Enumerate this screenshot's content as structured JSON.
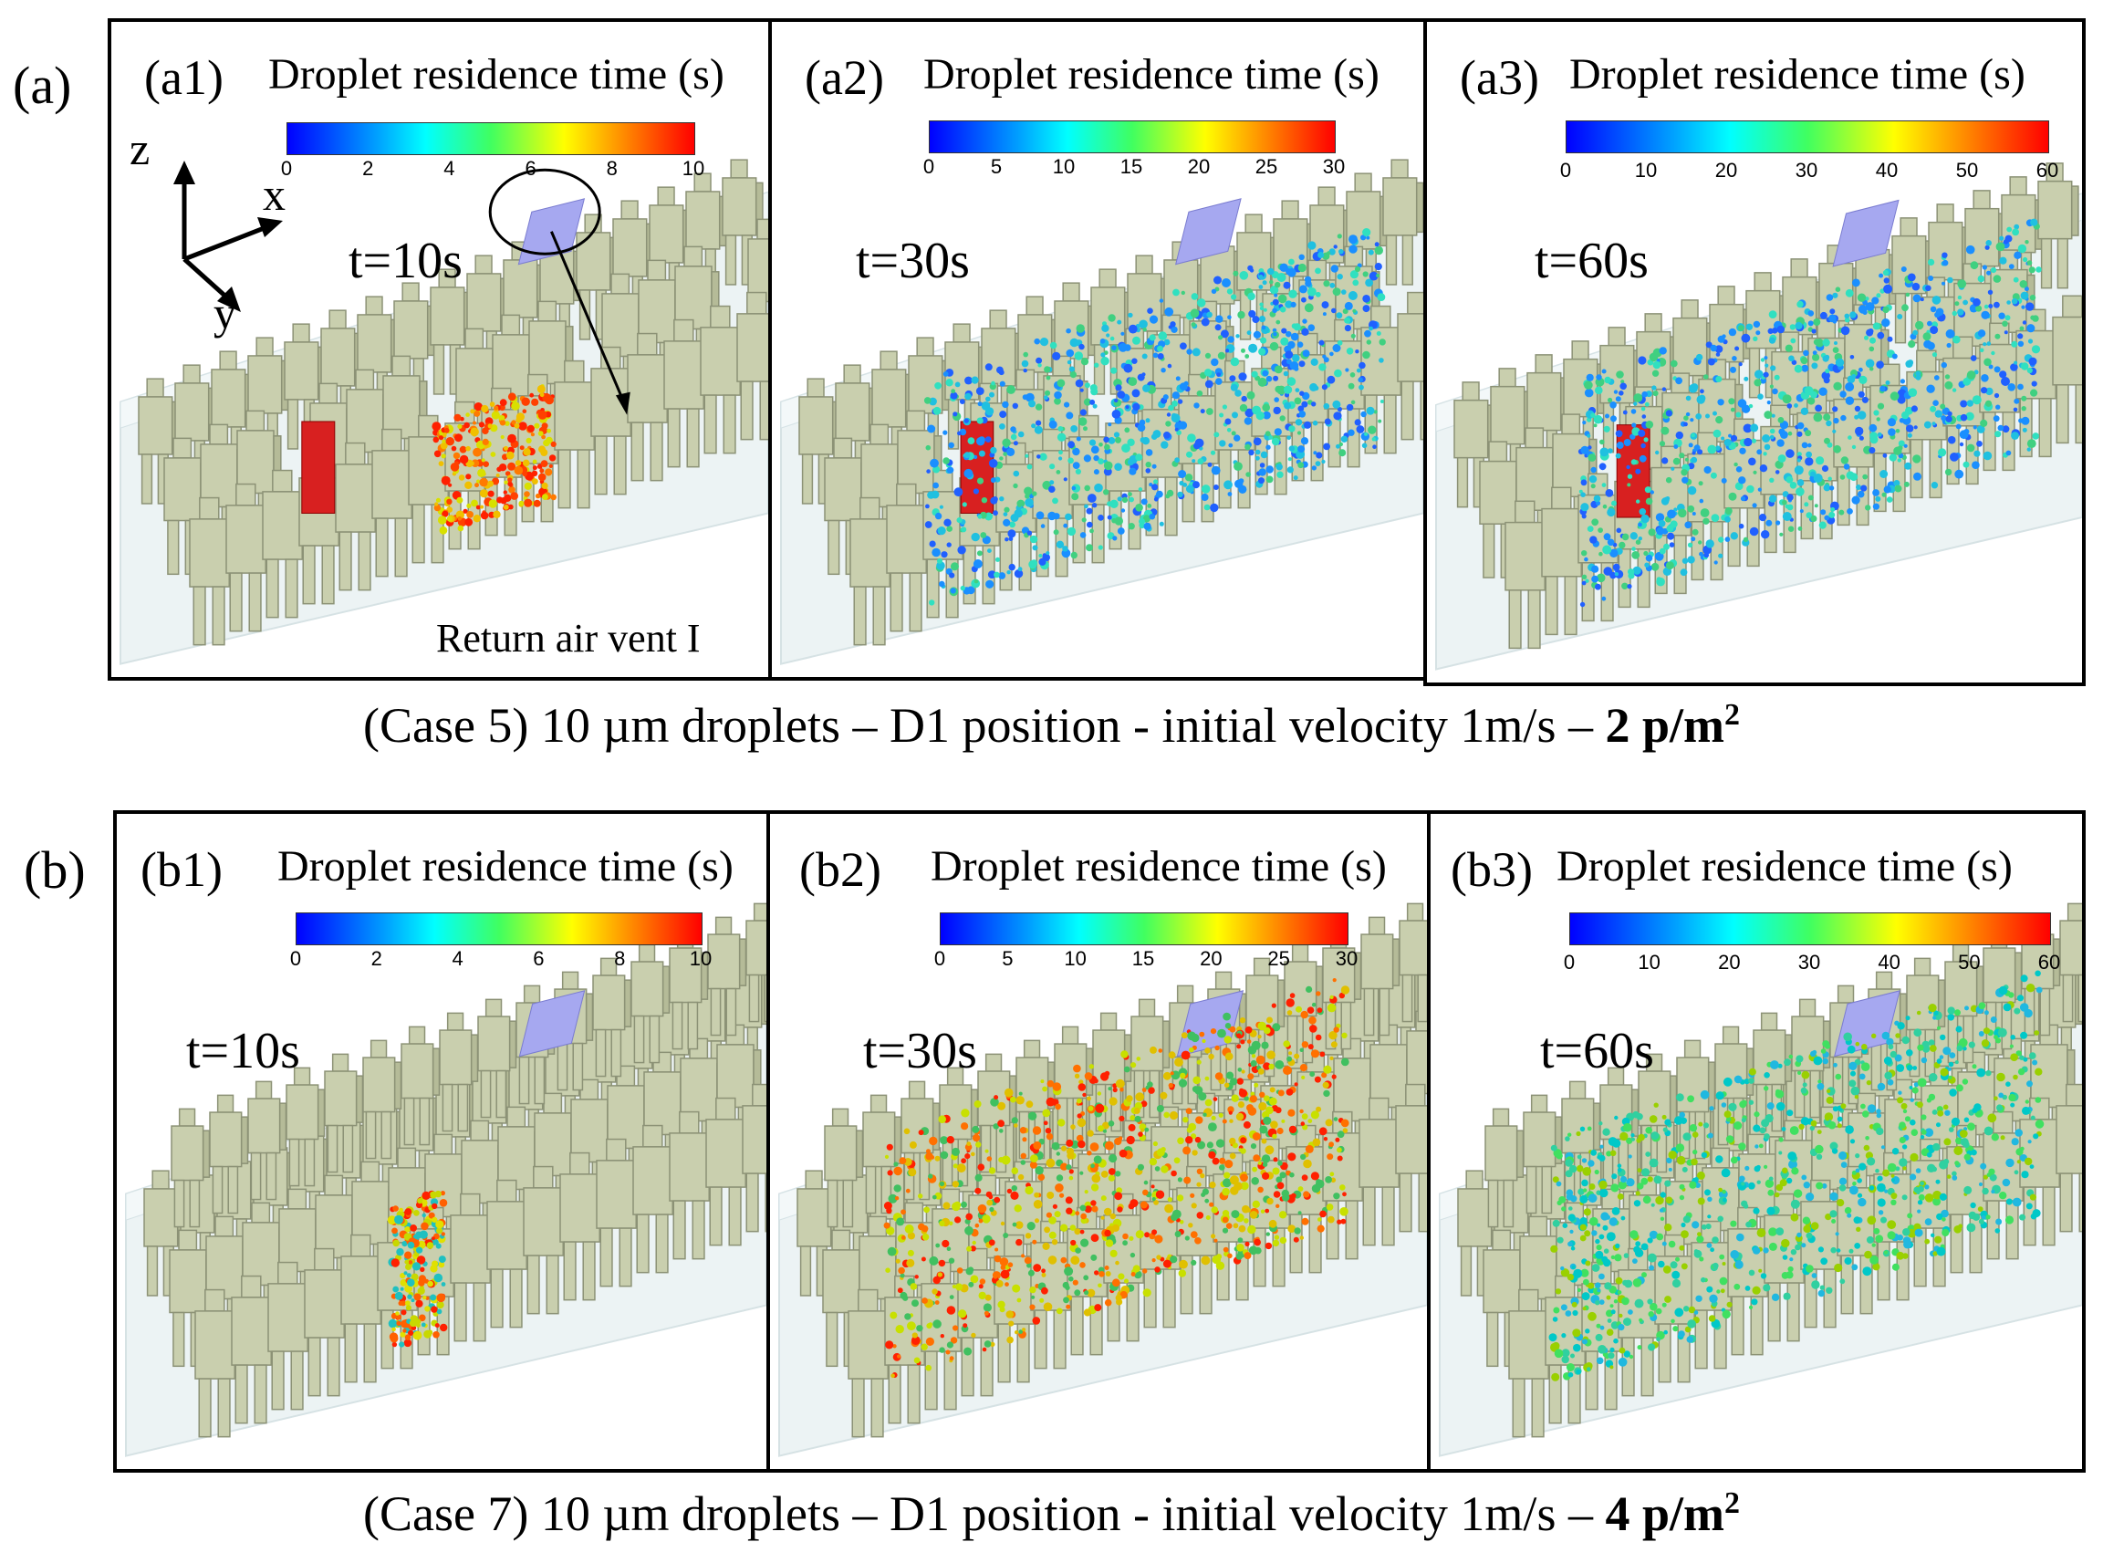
{
  "figure": {
    "row_a": {
      "label": "(a)",
      "caption_prefix": "(Case 5) 10 µm droplets – D1 position - initial velocity 1m/s – ",
      "caption_bold": "2 p/m",
      "caption_sup": "2",
      "panels": [
        {
          "id": "(a1)",
          "colorbar_title": "Droplet residence time  (s)",
          "ticks": [
            "0",
            "2",
            "4",
            "6",
            "8",
            "10"
          ],
          "time": "t=10s"
        },
        {
          "id": "(a2)",
          "colorbar_title": "Droplet residence time  (s)",
          "ticks": [
            "0",
            "5",
            "10",
            "15",
            "20",
            "25",
            "30"
          ],
          "time": "t=30s"
        },
        {
          "id": "(a3)",
          "colorbar_title": "Droplet residence time  (s)",
          "ticks": [
            "0",
            "10",
            "20",
            "30",
            "40",
            "50",
            "60"
          ],
          "time": "t=60s"
        }
      ]
    },
    "row_b": {
      "label": "(b)",
      "caption_prefix": "(Case 7) 10 µm droplets – D1 position - initial velocity 1m/s – ",
      "caption_bold": "4 p/m",
      "caption_sup": "2",
      "panels": [
        {
          "id": "(b1)",
          "colorbar_title": "Droplet residence time  (s)",
          "ticks": [
            "0",
            "2",
            "4",
            "6",
            "8",
            "10"
          ],
          "time": "t=10s"
        },
        {
          "id": "(b2)",
          "colorbar_title": "Droplet residence time  (s)",
          "ticks": [
            "0",
            "5",
            "10",
            "15",
            "20",
            "25",
            "30"
          ],
          "time": "t=30s"
        },
        {
          "id": "(b3)",
          "colorbar_title": "Droplet residence time  (s)",
          "ticks": [
            "0",
            "10",
            "20",
            "30",
            "40",
            "50",
            "60"
          ],
          "time": "t=60s"
        }
      ]
    },
    "annotation": "Return air vent I",
    "axes": {
      "z": "z",
      "x": "x",
      "y": "y"
    },
    "colors": {
      "mannequin": "#c9cfae",
      "mannequin_edge": "#8c9276",
      "source": "#d82020",
      "vent": "#a6a8f0",
      "room": "#e9f1f3"
    }
  }
}
